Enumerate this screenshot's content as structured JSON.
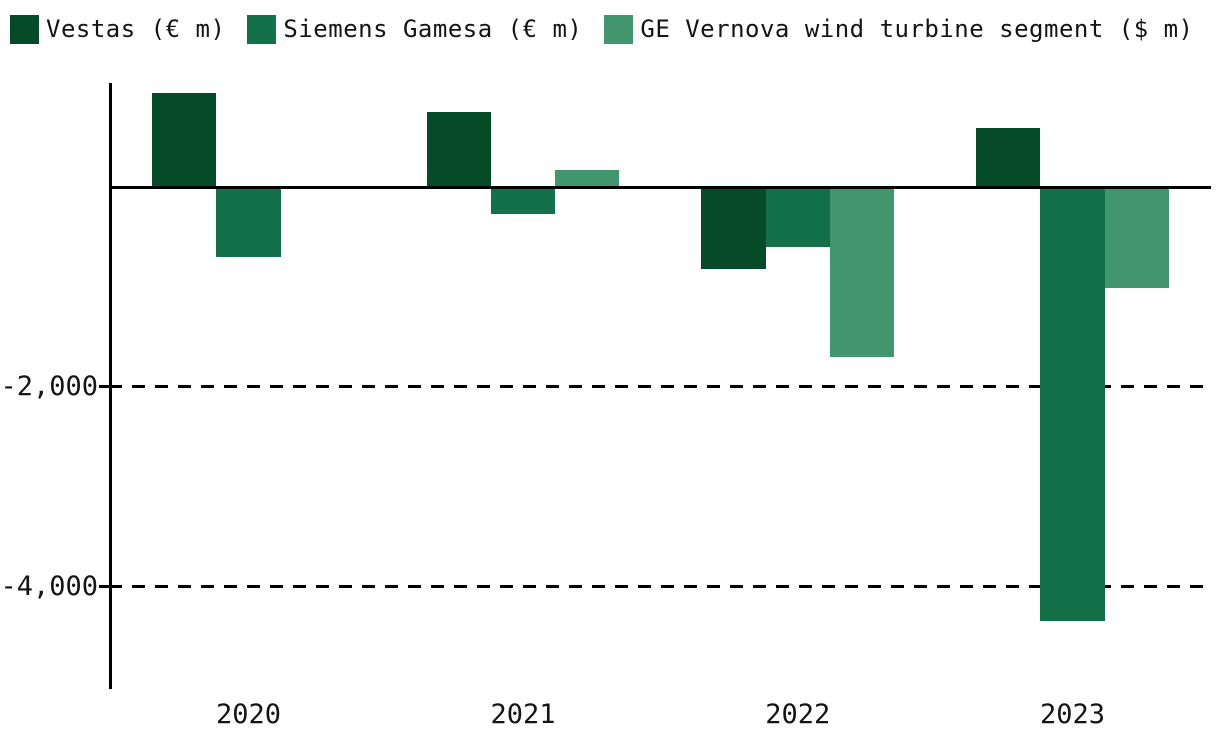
{
  "chart_data": {
    "type": "bar",
    "title": "",
    "xlabel": "",
    "ylabel": "",
    "categories": [
      "2020",
      "2021",
      "2022",
      "2023"
    ],
    "series": [
      {
        "id": "vestas",
        "name": "Vestas (€ m)",
        "color": "#054b28",
        "values": [
          960,
          770,
          -840,
          610
        ]
      },
      {
        "id": "siemens-gamesa",
        "name": "Siemens Gamesa (€ m)",
        "color": "#147048",
        "values": [
          -720,
          -290,
          -620,
          -4360
        ]
      },
      {
        "id": "ge-vernova",
        "name": "GE Vernova wind turbine segment ($ m)",
        "color": "#42966d",
        "values": [
          null,
          185,
          -1720,
          -1030
        ]
      }
    ],
    "yticks": [
      {
        "value": -2000,
        "label": "-2,000"
      },
      {
        "value": -4000,
        "label": "-4,000"
      }
    ],
    "baseline": 0,
    "ylim": [
      -5030,
      1040
    ],
    "grid": "horizontal-dashed",
    "legend_position": "top-left",
    "axis_color": "#000000",
    "text_color": "#141414",
    "background_color": "#ffffff"
  }
}
